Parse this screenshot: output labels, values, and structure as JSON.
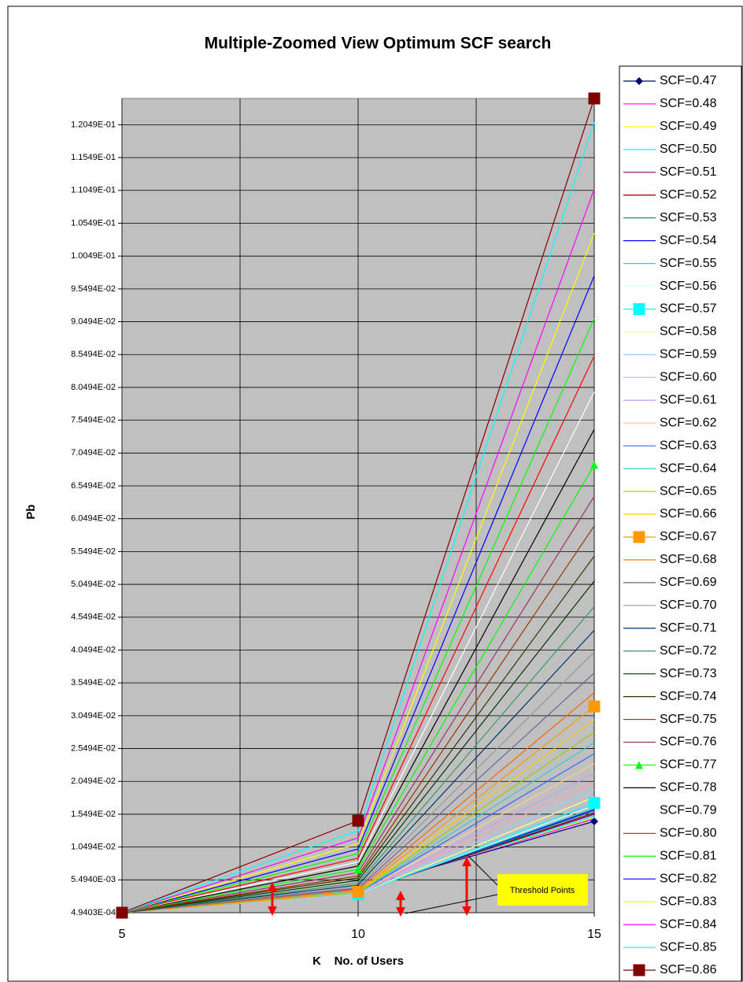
{
  "chart_data": {
    "type": "line",
    "title": "Multiple-Zoomed View Optimum SCF search",
    "xlabel": "K    No. of Users",
    "ylabel": "Pb",
    "x": [
      5,
      10,
      15
    ],
    "xlim": [
      5,
      15
    ],
    "xticks": [
      5,
      10,
      15
    ],
    "xgrid": [
      5,
      7.5,
      10,
      12.5,
      15
    ],
    "ylim": [
      0.00049403,
      0.1245
    ],
    "yticks": [
      {
        "value": 0.00049403,
        "label": "4.9403E-04"
      },
      {
        "value": 0.005494,
        "label": "5.4940E-03"
      },
      {
        "value": 0.010494,
        "label": "1.0494E-02"
      },
      {
        "value": 0.015494,
        "label": "1.5494E-02"
      },
      {
        "value": 0.020494,
        "label": "2.0494E-02"
      },
      {
        "value": 0.025494,
        "label": "2.5494E-02"
      },
      {
        "value": 0.030494,
        "label": "3.0494E-02"
      },
      {
        "value": 0.035494,
        "label": "3.5494E-02"
      },
      {
        "value": 0.040494,
        "label": "4.0494E-02"
      },
      {
        "value": 0.045494,
        "label": "4.5494E-02"
      },
      {
        "value": 0.050494,
        "label": "5.0494E-02"
      },
      {
        "value": 0.055494,
        "label": "5.5494E-02"
      },
      {
        "value": 0.060494,
        "label": "6.0494E-02"
      },
      {
        "value": 0.065494,
        "label": "6.5494E-02"
      },
      {
        "value": 0.070494,
        "label": "7.0494E-02"
      },
      {
        "value": 0.075494,
        "label": "7.5494E-02"
      },
      {
        "value": 0.080494,
        "label": "8.0494E-02"
      },
      {
        "value": 0.085494,
        "label": "8.5494E-02"
      },
      {
        "value": 0.090494,
        "label": "9.0494E-02"
      },
      {
        "value": 0.095494,
        "label": "9.5494E-02"
      },
      {
        "value": 0.100494,
        "label": "1.0049E-01"
      },
      {
        "value": 0.105494,
        "label": "1.0549E-01"
      },
      {
        "value": 0.110494,
        "label": "1.1049E-01"
      },
      {
        "value": 0.115494,
        "label": "1.1549E-01"
      },
      {
        "value": 0.120494,
        "label": "1.2049E-01"
      }
    ],
    "grid": true,
    "legend": "right",
    "annotations": [
      "Threshold Points"
    ],
    "series": [
      {
        "name": "SCF=0.47",
        "color": "#000080",
        "marker": "diamond",
        "values": [
          0.000494,
          0.0042,
          0.0144
        ]
      },
      {
        "name": "SCF=0.48",
        "color": "#ff00ff",
        "values": [
          0.000494,
          0.0041,
          0.0148
        ]
      },
      {
        "name": "SCF=0.49",
        "color": "#ffff00",
        "values": [
          0.000494,
          0.004,
          0.015
        ]
      },
      {
        "name": "SCF=0.50",
        "color": "#00ffff",
        "values": [
          0.000494,
          0.0039,
          0.0152
        ]
      },
      {
        "name": "SCF=0.51",
        "color": "#800080",
        "values": [
          0.000494,
          0.0037,
          0.0155
        ]
      },
      {
        "name": "SCF=0.52",
        "color": "#800000",
        "values": [
          0.000494,
          0.0036,
          0.0157
        ]
      },
      {
        "name": "SCF=0.53",
        "color": "#008080",
        "values": [
          0.000494,
          0.0036,
          0.016
        ]
      },
      {
        "name": "SCF=0.54",
        "color": "#0000ff",
        "values": [
          0.000494,
          0.0035,
          0.0162
        ]
      },
      {
        "name": "SCF=0.55",
        "color": "#33cccc",
        "values": [
          0.000494,
          0.0035,
          0.0164
        ]
      },
      {
        "name": "SCF=0.56",
        "color": "#ccffff",
        "values": [
          0.000494,
          0.0034,
          0.0168
        ]
      },
      {
        "name": "SCF=0.57",
        "color": "#00ffff",
        "marker": "square",
        "values": [
          0.000494,
          0.0033,
          0.0172
        ]
      },
      {
        "name": "SCF=0.58",
        "color": "#ffff99",
        "values": [
          0.000494,
          0.0033,
          0.0181
        ]
      },
      {
        "name": "SCF=0.59",
        "color": "#99ccff",
        "values": [
          0.000494,
          0.0033,
          0.0192
        ]
      },
      {
        "name": "SCF=0.60",
        "color": "#ff99cc",
        "values": [
          0.000494,
          0.0034,
          0.0204
        ]
      },
      {
        "name": "SCF=0.61",
        "color": "#cc99ff",
        "values": [
          0.000494,
          0.0034,
          0.0217
        ]
      },
      {
        "name": "SCF=0.62",
        "color": "#ffcc99",
        "values": [
          0.000494,
          0.0034,
          0.0232
        ]
      },
      {
        "name": "SCF=0.63",
        "color": "#3366ff",
        "values": [
          0.000494,
          0.0035,
          0.0247
        ]
      },
      {
        "name": "SCF=0.64",
        "color": "#33cccc",
        "values": [
          0.000494,
          0.0035,
          0.0264
        ]
      },
      {
        "name": "SCF=0.65",
        "color": "#99cc00",
        "values": [
          0.000494,
          0.0036,
          0.028
        ]
      },
      {
        "name": "SCF=0.66",
        "color": "#ffcc00",
        "values": [
          0.000494,
          0.0036,
          0.0299
        ]
      },
      {
        "name": "SCF=0.67",
        "color": "#ff9900",
        "marker": "square",
        "values": [
          0.000494,
          0.0037,
          0.0319
        ]
      },
      {
        "name": "SCF=0.68",
        "color": "#ff6600",
        "values": [
          0.000494,
          0.004,
          0.034
        ]
      },
      {
        "name": "SCF=0.69",
        "color": "#666699",
        "values": [
          0.000494,
          0.0042,
          0.037
        ]
      },
      {
        "name": "SCF=0.70",
        "color": "#969696",
        "values": [
          0.000494,
          0.0044,
          0.0402
        ]
      },
      {
        "name": "SCF=0.71",
        "color": "#003366",
        "values": [
          0.000494,
          0.0047,
          0.0435
        ]
      },
      {
        "name": "SCF=0.72",
        "color": "#339966",
        "values": [
          0.000494,
          0.005,
          0.0471
        ]
      },
      {
        "name": "SCF=0.73",
        "color": "#003300",
        "values": [
          0.000494,
          0.0054,
          0.051
        ]
      },
      {
        "name": "SCF=0.74",
        "color": "#333300",
        "values": [
          0.000494,
          0.0058,
          0.0548
        ]
      },
      {
        "name": "SCF=0.75",
        "color": "#993300",
        "values": [
          0.000494,
          0.0061,
          0.0594
        ]
      },
      {
        "name": "SCF=0.76",
        "color": "#993366",
        "values": [
          0.000494,
          0.0066,
          0.0639
        ]
      },
      {
        "name": "SCF=0.77",
        "color": "#00ff00",
        "marker": "triangle",
        "values": [
          0.000494,
          0.0071,
          0.0687
        ]
      },
      {
        "name": "SCF=0.78",
        "color": "#000000",
        "values": [
          0.000494,
          0.0076,
          0.0741
        ]
      },
      {
        "name": "SCF=0.79",
        "color": "#ffffff",
        "values": [
          0.000494,
          0.0082,
          0.0798
        ]
      },
      {
        "name": "SCF=0.80",
        "color": "#ff0000",
        "values": [
          0.000494,
          0.0088,
          0.0853
        ]
      },
      {
        "name": "SCF=0.81",
        "color": "#00ff00",
        "values": [
          0.000494,
          0.0095,
          0.091
        ]
      },
      {
        "name": "SCF=0.82",
        "color": "#0000ff",
        "values": [
          0.000494,
          0.0102,
          0.0975
        ]
      },
      {
        "name": "SCF=0.83",
        "color": "#ffff00",
        "values": [
          0.000494,
          0.011,
          0.104
        ]
      },
      {
        "name": "SCF=0.84",
        "color": "#ff00ff",
        "values": [
          0.000494,
          0.0119,
          0.1107
        ]
      },
      {
        "name": "SCF=0.85",
        "color": "#00ffff",
        "values": [
          0.000494,
          0.013,
          0.1209
        ]
      },
      {
        "name": "SCF=0.86",
        "color": "#800000",
        "marker": "square",
        "values": [
          0.000494,
          0.0145,
          0.1245
        ]
      }
    ]
  }
}
